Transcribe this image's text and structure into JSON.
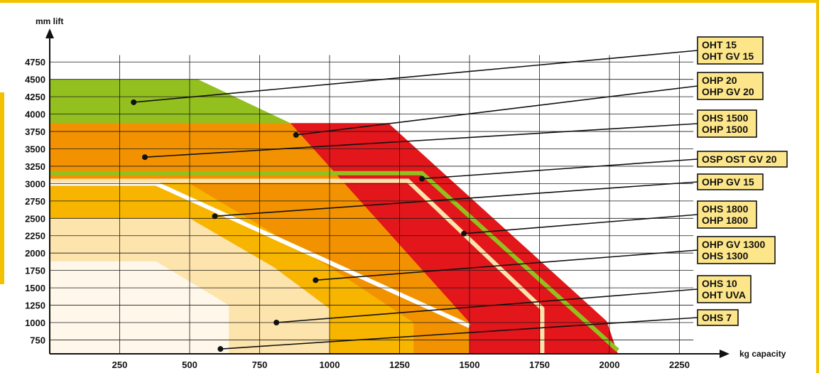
{
  "chart_data": {
    "type": "area",
    "title": "",
    "xlabel": "kg capacity",
    "ylabel": "mm lift",
    "xlim": [
      0,
      2300
    ],
    "ylim": [
      550,
      4850
    ],
    "grid": true,
    "x_ticks": [
      250,
      500,
      750,
      1000,
      1250,
      1500,
      1750,
      2000,
      2250
    ],
    "y_ticks": [
      750,
      1000,
      1250,
      1500,
      1750,
      2000,
      2250,
      2500,
      2750,
      3000,
      3250,
      3500,
      3750,
      4000,
      4250,
      4500,
      4750
    ],
    "regions": [
      {
        "name": "OHS 1800 / OHP 1800",
        "color": "#e3161b",
        "points": [
          [
            0,
            550
          ],
          [
            0,
            3870
          ],
          [
            1210,
            3870
          ],
          [
            1990,
            1020
          ],
          [
            2030,
            550
          ]
        ]
      },
      {
        "name": "OHT 15 / OHT GV 15",
        "color": "#93c01f",
        "points": [
          [
            0,
            550
          ],
          [
            0,
            4500
          ],
          [
            530,
            4500
          ],
          [
            860,
            3870
          ],
          [
            0,
            3870
          ]
        ]
      },
      {
        "name": "OHS 1500 / OHP 1500",
        "color": "#f39200",
        "points": [
          [
            0,
            550
          ],
          [
            0,
            3870
          ],
          [
            860,
            3870
          ],
          [
            1500,
            1000
          ],
          [
            1500,
            550
          ]
        ]
      },
      {
        "name": "OHP GV 1300 / OHS 1300",
        "color": "#f7b500",
        "points": [
          [
            0,
            550
          ],
          [
            0,
            3000
          ],
          [
            500,
            3000
          ],
          [
            1000,
            1800
          ],
          [
            1300,
            1000
          ],
          [
            1300,
            550
          ]
        ]
      },
      {
        "name": "OHS 10 / OHT UVA",
        "color": "#fde3ac",
        "points": [
          [
            0,
            550
          ],
          [
            0,
            2500
          ],
          [
            500,
            2500
          ],
          [
            800,
            1800
          ],
          [
            1000,
            1200
          ],
          [
            1000,
            550
          ]
        ]
      },
      {
        "name": "OHS 7",
        "color": "#fff8ea",
        "points": [
          [
            0,
            550
          ],
          [
            0,
            1880
          ],
          [
            380,
            1880
          ],
          [
            640,
            1250
          ],
          [
            640,
            550
          ]
        ]
      }
    ],
    "series": [
      {
        "name": "OSP OST GV 20",
        "color": "#93c01f",
        "points": [
          [
            0,
            3150
          ],
          [
            1330,
            3150
          ],
          [
            2030,
            600
          ]
        ]
      },
      {
        "name": "OHP GV 15",
        "color": "#ffffff",
        "points": [
          [
            0,
            3000
          ],
          [
            380,
            3000
          ],
          [
            1500,
            950
          ]
        ]
      },
      {
        "name": "OHS 1500 / OHP 1500",
        "color": "#fde3ac",
        "points": [
          [
            0,
            3040
          ],
          [
            1280,
            3040
          ],
          [
            1760,
            1200
          ],
          [
            1760,
            550
          ]
        ]
      }
    ],
    "labels": [
      {
        "lines": [
          "OHT 15",
          "OHT GV 15"
        ],
        "dot": [
          300,
          4170
        ]
      },
      {
        "lines": [
          "OHP 20",
          "OHP GV 20"
        ],
        "dot": [
          880,
          3700
        ]
      },
      {
        "lines": [
          "OHS 1500",
          "OHP 1500"
        ],
        "dot": [
          340,
          3380
        ]
      },
      {
        "lines": [
          "OSP OST GV 20"
        ],
        "dot": [
          1330,
          3070
        ]
      },
      {
        "lines": [
          "OHP GV 15"
        ],
        "dot": [
          590,
          2530
        ]
      },
      {
        "lines": [
          "OHS 1800",
          "OHP 1800"
        ],
        "dot": [
          1480,
          2280
        ]
      },
      {
        "lines": [
          "OHP GV 1300",
          "OHS 1300"
        ],
        "dot": [
          950,
          1610
        ]
      },
      {
        "lines": [
          "OHS 10",
          "OHT UVA"
        ],
        "dot": [
          810,
          1000
        ]
      },
      {
        "lines": [
          "OHS 7"
        ],
        "dot": [
          610,
          620
        ]
      }
    ]
  }
}
